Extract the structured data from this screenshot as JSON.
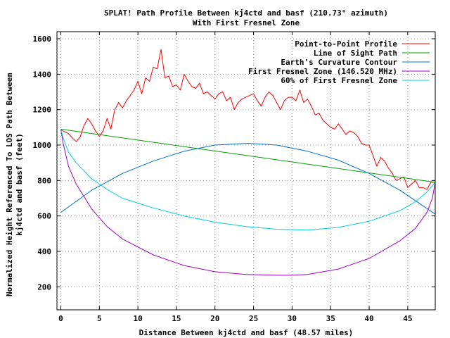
{
  "chart_data": {
    "type": "line",
    "title": "SPLAT! Path Profile Between kj4ctd and basf (210.73° azimuth)",
    "subtitle": "With First Fresnel Zone",
    "xlabel": "Distance Between kj4ctd and basf (48.57 miles)",
    "ylabel_line1": "Normalized Height Referenced To LOS Path Between",
    "ylabel_line2": "kj4ctd and basf (feet)",
    "xlim": [
      -0.5,
      48.57
    ],
    "ylim": [
      70,
      1640
    ],
    "x_ticks": [
      0,
      5,
      10,
      15,
      20,
      25,
      30,
      35,
      40,
      45
    ],
    "y_ticks": [
      200,
      400,
      600,
      800,
      1000,
      1200,
      1400,
      1600
    ],
    "grid": true,
    "legend_position": "top-right",
    "series": [
      {
        "name": "Point-to-Point Profile",
        "color": "#ff0000",
        "x": [
          0,
          0.5,
          1,
          1.5,
          2,
          2.5,
          3,
          3.5,
          4,
          4.5,
          5,
          5.5,
          6,
          6.5,
          7,
          7.5,
          8,
          8.5,
          9,
          9.5,
          10,
          10.5,
          11,
          11.5,
          12,
          12.5,
          13,
          13.5,
          14,
          14.5,
          15,
          15.5,
          16,
          16.5,
          17,
          17.5,
          18,
          18.5,
          19,
          19.5,
          20,
          20.5,
          21,
          21.5,
          22,
          22.5,
          23,
          23.5,
          24,
          24.5,
          25,
          25.5,
          26,
          26.5,
          27,
          27.5,
          28,
          28.5,
          29,
          29.5,
          30,
          30.5,
          31,
          31.5,
          32,
          32.5,
          33,
          33.5,
          34,
          34.5,
          35,
          35.5,
          36,
          36.5,
          37,
          37.5,
          38,
          38.5,
          39,
          39.5,
          40,
          40.5,
          41,
          41.5,
          42,
          42.5,
          43,
          43.5,
          44,
          44.5,
          45,
          45.5,
          46,
          46.5,
          47,
          47.5,
          48,
          48.57
        ],
        "values": [
          1085,
          1075,
          1065,
          1040,
          1020,
          1045,
          1110,
          1150,
          1120,
          1080,
          1050,
          1080,
          1150,
          1090,
          1200,
          1240,
          1210,
          1250,
          1280,
          1310,
          1360,
          1290,
          1380,
          1360,
          1440,
          1430,
          1540,
          1380,
          1390,
          1330,
          1340,
          1310,
          1400,
          1360,
          1330,
          1320,
          1350,
          1290,
          1300,
          1280,
          1260,
          1290,
          1300,
          1250,
          1270,
          1200,
          1240,
          1260,
          1270,
          1280,
          1290,
          1250,
          1220,
          1270,
          1300,
          1280,
          1240,
          1200,
          1250,
          1270,
          1270,
          1250,
          1310,
          1240,
          1260,
          1220,
          1170,
          1180,
          1140,
          1120,
          1100,
          1090,
          1120,
          1090,
          1060,
          1080,
          1070,
          1050,
          1010,
          1000,
          1000,
          940,
          880,
          930,
          910,
          870,
          840,
          800,
          810,
          820,
          760,
          780,
          800,
          760,
          760,
          750,
          790,
          790
        ]
      },
      {
        "name": "Line of Sight Path",
        "color": "#00a000",
        "x": [
          0,
          48.57
        ],
        "values": [
          1090,
          790
        ]
      },
      {
        "name": "Earth's Curvature Contour",
        "color": "#0070d0",
        "x": [
          0,
          4,
          8,
          12,
          16,
          20,
          24.3,
          28,
          32,
          36,
          40,
          44,
          48.57
        ],
        "values": [
          620,
          745,
          840,
          910,
          965,
          1000,
          1010,
          1000,
          965,
          915,
          840,
          745,
          610
        ]
      },
      {
        "name": "First Fresnel Zone (146.520 MHz)",
        "color": "#a000c0",
        "x": [
          0,
          0.3,
          1,
          2,
          4,
          6,
          8,
          12,
          16,
          20,
          24,
          28,
          30,
          32,
          36,
          40,
          44,
          46,
          47.5,
          48.2,
          48.57
        ],
        "values": [
          1090,
          1010,
          880,
          780,
          640,
          540,
          470,
          380,
          320,
          285,
          270,
          265,
          265,
          270,
          300,
          360,
          460,
          530,
          620,
          700,
          790
        ]
      },
      {
        "name": "60% of First Fresnel Zone",
        "color": "#00d0d0",
        "x": [
          0,
          0.3,
          1,
          2,
          4,
          6,
          8,
          12,
          16,
          20,
          24,
          28,
          32,
          36,
          40,
          44,
          46,
          47.5,
          48.57
        ],
        "values": [
          1090,
          1040,
          960,
          900,
          810,
          750,
          700,
          645,
          600,
          565,
          540,
          525,
          520,
          535,
          570,
          630,
          680,
          735,
          790
        ]
      }
    ]
  }
}
